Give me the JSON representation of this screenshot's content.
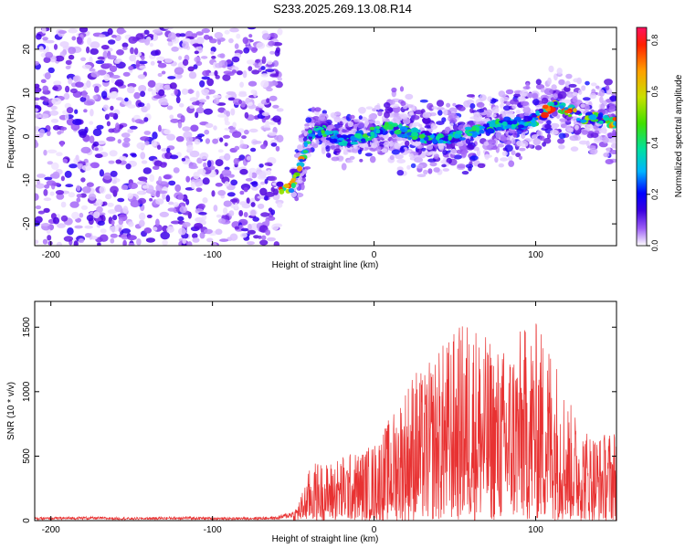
{
  "title": "S233.2025.269.13.08.R14",
  "chart_data": [
    {
      "type": "heatmap",
      "xlabel": "Height of straight line (km)",
      "ylabel": "Frequency (Hz)",
      "xlim": [
        -210,
        150
      ],
      "ylim": [
        -25,
        25
      ],
      "xticks": [
        -200,
        -100,
        0,
        100
      ],
      "yticks": [
        -20,
        -10,
        0,
        10,
        20
      ],
      "colorbar": {
        "label": "Normalized spectral amplitude",
        "range": [
          0.0,
          0.85
        ],
        "ticks": [
          "0.0",
          "0.2",
          "0.4",
          "0.6",
          "0.8"
        ]
      },
      "ridge": {
        "height_km": [
          -60,
          -55,
          -52,
          -48,
          -44,
          -40,
          -35,
          -30,
          -25,
          -20,
          -15,
          -10,
          -5,
          0,
          10,
          20,
          30,
          40,
          50,
          60,
          70,
          80,
          90,
          100,
          110,
          120,
          130,
          140,
          150
        ],
        "frequency_hz": [
          -11,
          -12,
          -12,
          -9,
          -5,
          0,
          1,
          1,
          0,
          -1,
          -1,
          0,
          0,
          1,
          2,
          1,
          0,
          -1,
          0,
          1,
          2,
          3,
          3,
          4,
          7,
          6,
          4,
          4,
          3
        ]
      },
      "noise_floor_region_km": [
        -210,
        -58
      ]
    },
    {
      "type": "line",
      "xlabel": "Height of straight line (km)",
      "ylabel": "SNR (10 * v/v)",
      "xlim": [
        -210,
        150
      ],
      "ylim": [
        0,
        1700
      ],
      "xticks": [
        -200,
        -100,
        0,
        100
      ],
      "yticks": [
        0,
        500,
        1000,
        1500
      ],
      "series": [
        {
          "name": "SNR",
          "color": "#e83232",
          "x": [
            -210,
            -180,
            -150,
            -120,
            -90,
            -60,
            -50,
            -45,
            -40,
            -35,
            -30,
            -20,
            -10,
            0,
            10,
            20,
            25,
            30,
            40,
            50,
            60,
            70,
            80,
            90,
            100,
            110,
            120,
            130,
            140,
            150
          ],
          "y": [
            15,
            20,
            15,
            20,
            15,
            20,
            50,
            150,
            300,
            350,
            330,
            380,
            400,
            450,
            600,
            800,
            900,
            850,
            1000,
            1100,
            1200,
            1050,
            1000,
            1100,
            1150,
            1050,
            700,
            550,
            500,
            550
          ]
        }
      ]
    }
  ]
}
